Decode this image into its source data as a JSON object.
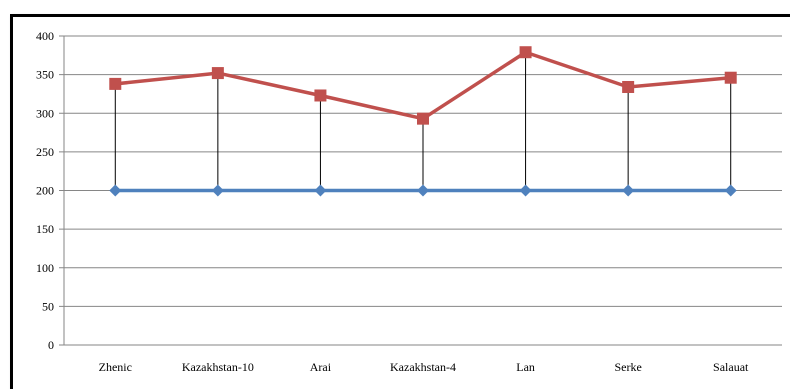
{
  "chart_data": {
    "type": "line",
    "title": "",
    "xlabel": "",
    "ylabel": "",
    "categories": [
      "Zhenic",
      "Kazakhstan-10",
      "Arai",
      "Kazakhstan-4",
      "Lan",
      "Serke",
      "Salauat"
    ],
    "ylim": [
      0,
      400
    ],
    "yticks": [
      0,
      50,
      100,
      150,
      200,
      250,
      300,
      350,
      400
    ],
    "grid": true,
    "legend": "none",
    "drop_lines": true,
    "series": [
      {
        "values": [
          338,
          352,
          323,
          293,
          379,
          334,
          346
        ],
        "color": "#c0504d",
        "marker": "square"
      },
      {
        "values": [
          200,
          200,
          200,
          200,
          200,
          200,
          200
        ],
        "color": "#4f81bd",
        "marker": "diamond"
      }
    ]
  }
}
